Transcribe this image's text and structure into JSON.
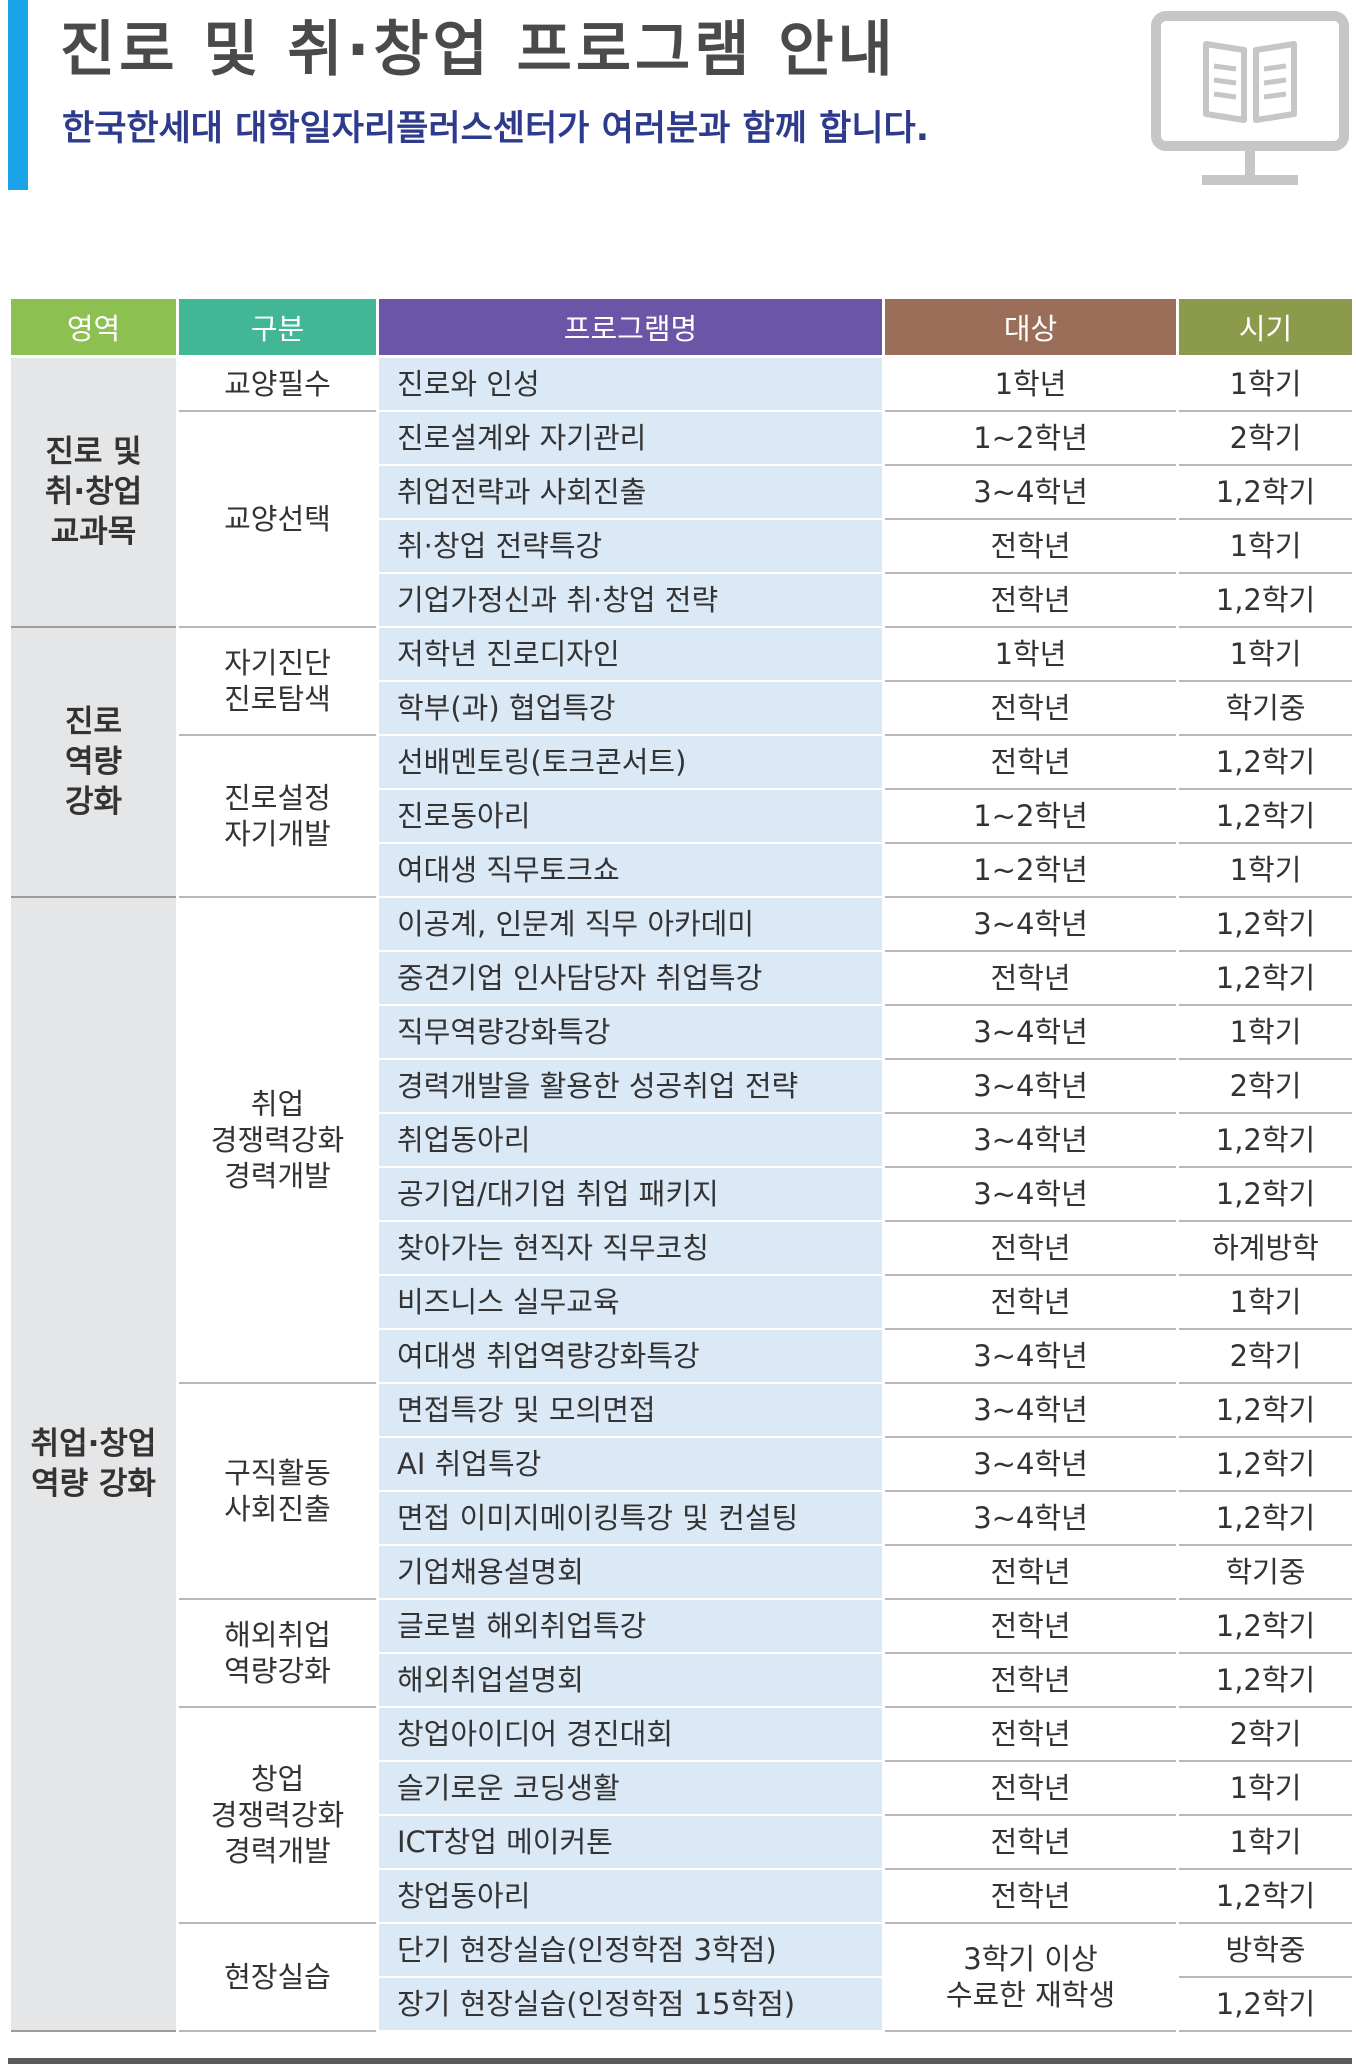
{
  "header": {
    "title": "진로 및 취·창업 프로그램 안내",
    "subtitle": "한국한세대 대학일자리플러스센터가 여러분과 함께 합니다.",
    "icon": "book-monitor-icon",
    "accent_color": "#1aa3e8",
    "subtitle_color": "#2e3a8c"
  },
  "table": {
    "columns": [
      "영역",
      "구분",
      "프로그램명",
      "대상",
      "시기"
    ],
    "column_colors": [
      "#8cc152",
      "#41b795",
      "#6b55a6",
      "#9a6e58",
      "#8c9a4c"
    ],
    "areas": [
      {
        "label": "진로 및\n취·창업\n교과목",
        "rowspan": 5
      },
      {
        "label": "진로\n역량\n강화",
        "rowspan": 5
      },
      {
        "label": "취업·창업\n역량 강화",
        "rowspan": 21
      }
    ],
    "categories": [
      {
        "label": "교양필수",
        "rowspan": 1
      },
      {
        "label": "교양선택",
        "rowspan": 4
      },
      {
        "label": "자기진단\n진로탐색",
        "rowspan": 2
      },
      {
        "label": "진로설정\n자기개발",
        "rowspan": 3
      },
      {
        "label": "취업\n경쟁력강화\n경력개발",
        "rowspan": 9
      },
      {
        "label": "구직활동\n사회진출",
        "rowspan": 4
      },
      {
        "label": "해외취업\n역량강화",
        "rowspan": 2
      },
      {
        "label": "창업\n경쟁력강화\n경력개발",
        "rowspan": 4
      },
      {
        "label": "현장실습",
        "rowspan": 2
      }
    ],
    "rows": [
      {
        "program": "진로와 인성",
        "target": "1학년",
        "term": "1학기"
      },
      {
        "program": "진로설계와 자기관리",
        "target": "1~2학년",
        "term": "2학기"
      },
      {
        "program": "취업전략과 사회진출",
        "target": "3~4학년",
        "term": "1,2학기"
      },
      {
        "program": "취·창업 전략특강",
        "target": "전학년",
        "term": "1학기"
      },
      {
        "program": "기업가정신과 취·창업 전략",
        "target": "전학년",
        "term": "1,2학기"
      },
      {
        "program": "저학년 진로디자인",
        "target": "1학년",
        "term": "1학기"
      },
      {
        "program": "학부(과) 협업특강",
        "target": "전학년",
        "term": "학기중"
      },
      {
        "program": "선배멘토링(토크콘서트)",
        "target": "전학년",
        "term": "1,2학기"
      },
      {
        "program": "진로동아리",
        "target": "1~2학년",
        "term": "1,2학기"
      },
      {
        "program": "여대생 직무토크쇼",
        "target": "1~2학년",
        "term": "1학기"
      },
      {
        "program": "이공계, 인문계 직무 아카데미",
        "target": "3~4학년",
        "term": "1,2학기"
      },
      {
        "program": "중견기업 인사담당자 취업특강",
        "target": "전학년",
        "term": "1,2학기"
      },
      {
        "program": "직무역량강화특강",
        "target": "3~4학년",
        "term": "1학기"
      },
      {
        "program": "경력개발을 활용한 성공취업 전략",
        "target": "3~4학년",
        "term": "2학기"
      },
      {
        "program": "취업동아리",
        "target": "3~4학년",
        "term": "1,2학기"
      },
      {
        "program": "공기업/대기업 취업 패키지",
        "target": "3~4학년",
        "term": "1,2학기"
      },
      {
        "program": "찾아가는 현직자 직무코칭",
        "target": "전학년",
        "term": "하계방학"
      },
      {
        "program": "비즈니스 실무교육",
        "target": "전학년",
        "term": "1학기"
      },
      {
        "program": "여대생 취업역량강화특강",
        "target": "3~4학년",
        "term": "2학기"
      },
      {
        "program": "면접특강 및 모의면접",
        "target": "3~4학년",
        "term": "1,2학기"
      },
      {
        "program": "AI 취업특강",
        "target": "3~4학년",
        "term": "1,2학기"
      },
      {
        "program": "면접 이미지메이킹특강 및 컨설팅",
        "target": "3~4학년",
        "term": "1,2학기"
      },
      {
        "program": "기업채용설명회",
        "target": "전학년",
        "term": "학기중"
      },
      {
        "program": "글로벌 해외취업특강",
        "target": "전학년",
        "term": "1,2학기"
      },
      {
        "program": "해외취업설명회",
        "target": "전학년",
        "term": "1,2학기"
      },
      {
        "program": "창업아이디어 경진대회",
        "target": "전학년",
        "term": "2학기"
      },
      {
        "program": "슬기로운 코딩생활",
        "target": "전학년",
        "term": "1학기"
      },
      {
        "program": "ICT창업 메이커톤",
        "target": "전학년",
        "term": "1학기"
      },
      {
        "program": "창업동아리",
        "target": "전학년",
        "term": "1,2학기"
      },
      {
        "program": "단기 현장실습(인정학점 3학점)",
        "target": "3학기 이상\n수료한 재학생",
        "target_rowspan": 2,
        "term": "방학중"
      },
      {
        "program": "장기 현장실습(인정학점 15학점)",
        "target": null,
        "term": "1,2학기"
      }
    ]
  }
}
